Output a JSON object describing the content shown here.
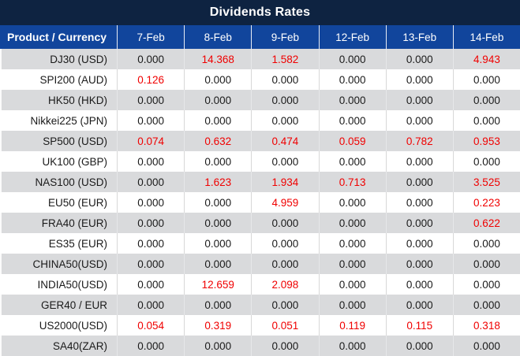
{
  "title": "Dividends Rates",
  "table": {
    "product_column_header": "Product / Currency",
    "date_columns": [
      "7-Feb",
      "8-Feb",
      "9-Feb",
      "12-Feb",
      "13-Feb",
      "14-Feb"
    ],
    "rows": [
      {
        "product": "DJ30 (USD)",
        "values": [
          "0.000",
          "14.368",
          "1.582",
          "0.000",
          "0.000",
          "4.943"
        ]
      },
      {
        "product": "SPI200 (AUD)",
        "values": [
          "0.126",
          "0.000",
          "0.000",
          "0.000",
          "0.000",
          "0.000"
        ]
      },
      {
        "product": "HK50 (HKD)",
        "values": [
          "0.000",
          "0.000",
          "0.000",
          "0.000",
          "0.000",
          "0.000"
        ]
      },
      {
        "product": "Nikkei225 (JPN)",
        "values": [
          "0.000",
          "0.000",
          "0.000",
          "0.000",
          "0.000",
          "0.000"
        ]
      },
      {
        "product": "SP500 (USD)",
        "values": [
          "0.074",
          "0.632",
          "0.474",
          "0.059",
          "0.782",
          "0.953"
        ]
      },
      {
        "product": "UK100 (GBP)",
        "values": [
          "0.000",
          "0.000",
          "0.000",
          "0.000",
          "0.000",
          "0.000"
        ]
      },
      {
        "product": "NAS100 (USD)",
        "values": [
          "0.000",
          "1.623",
          "1.934",
          "0.713",
          "0.000",
          "3.525"
        ]
      },
      {
        "product": "EU50 (EUR)",
        "values": [
          "0.000",
          "0.000",
          "4.959",
          "0.000",
          "0.000",
          "0.223"
        ]
      },
      {
        "product": "FRA40 (EUR)",
        "values": [
          "0.000",
          "0.000",
          "0.000",
          "0.000",
          "0.000",
          "0.622"
        ]
      },
      {
        "product": "ES35 (EUR)",
        "values": [
          "0.000",
          "0.000",
          "0.000",
          "0.000",
          "0.000",
          "0.000"
        ]
      },
      {
        "product": "CHINA50(USD)",
        "values": [
          "0.000",
          "0.000",
          "0.000",
          "0.000",
          "0.000",
          "0.000"
        ]
      },
      {
        "product": "INDIA50(USD)",
        "values": [
          "0.000",
          "12.659",
          "2.098",
          "0.000",
          "0.000",
          "0.000"
        ]
      },
      {
        "product": "GER40 / EUR",
        "values": [
          "0.000",
          "0.000",
          "0.000",
          "0.000",
          "0.000",
          "0.000"
        ]
      },
      {
        "product": "US2000(USD)",
        "values": [
          "0.054",
          "0.319",
          "0.051",
          "0.119",
          "0.115",
          "0.318"
        ]
      },
      {
        "product": "SA40(ZAR)",
        "values": [
          "0.000",
          "0.000",
          "0.000",
          "0.000",
          "0.000",
          "0.000"
        ]
      }
    ]
  },
  "colors": {
    "title_bar_bg": "#0e2341",
    "header_bg": "#11459c",
    "stripe_row_bg": "#d9dadc",
    "plain_row_bg": "#ffffff",
    "zero_value_text": "#1a1a1a",
    "nonzero_value_text": "#f00000"
  }
}
